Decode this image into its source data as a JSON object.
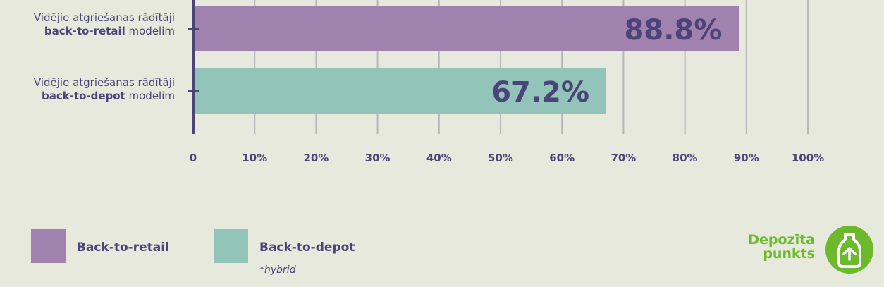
{
  "chart_data": {
    "type": "bar",
    "orientation": "horizontal",
    "categories": [
      {
        "text": "Vidējie atgriešanas rādītāji",
        "bold": "back-to-retail",
        "rest": " modelim"
      },
      {
        "text": "Vidējie atgriešanas rādītāji",
        "bold": "back-to-depot",
        "rest": " modelim"
      }
    ],
    "values": [
      88.8,
      67.2
    ],
    "value_labels": [
      "88.8%",
      "67.2%"
    ],
    "bar_colors": [
      "#a181ad",
      "#92c4ba"
    ],
    "xlim": [
      0,
      100
    ],
    "xticks": [
      0,
      10,
      20,
      30,
      40,
      50,
      60,
      70,
      80,
      90,
      100
    ],
    "xtick_labels": [
      "0",
      "10%",
      "20%",
      "30%",
      "40%",
      "50%",
      "60%",
      "70%",
      "80%",
      "90%",
      "100%"
    ],
    "grid": true,
    "legend_position": "bottom-left",
    "legend": [
      {
        "label": "Back-to-retail",
        "color": "#a181ad",
        "note": ""
      },
      {
        "label": "Back-to-depot",
        "color": "#92c4ba",
        "note": "*hybrid"
      }
    ]
  },
  "logo": {
    "line1": "Depozīta",
    "line2": "punkts",
    "icon": "bottle-recycle-icon",
    "color": "#6cba2c"
  },
  "colors": {
    "background": "#e6e9dc",
    "text": "#4b4478",
    "axis": "#4b4478",
    "grid": "#b5b8b8"
  }
}
